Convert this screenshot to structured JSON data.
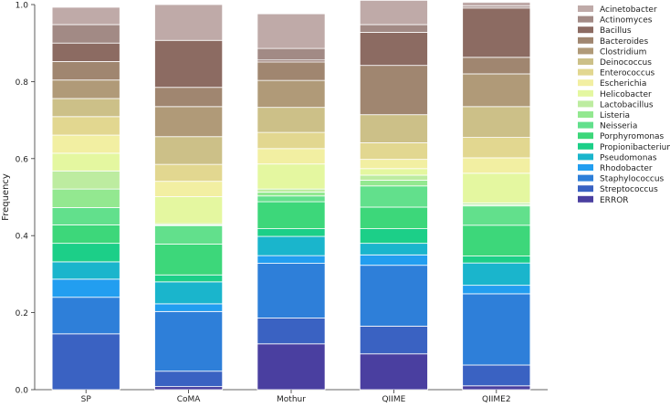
{
  "chart_data": {
    "type": "bar",
    "stacked": true,
    "title": "",
    "xlabel": "",
    "ylabel": "Frequency",
    "ylim": [
      0,
      1
    ],
    "yticks": [
      0.0,
      0.2,
      0.4,
      0.6,
      0.8,
      1.0
    ],
    "ytick_labels": [
      "0.0",
      "0.2",
      "0.4",
      "0.6",
      "0.8",
      "1.0"
    ],
    "grid": false,
    "legend_position": "right",
    "categories": [
      "SP",
      "CoMA",
      "Mothur",
      "QIIME",
      "QIIME2"
    ],
    "series": [
      {
        "name": "ERROR",
        "color": "#4a3fa0",
        "values": [
          0.0,
          0.008,
          0.119,
          0.093,
          0.01
        ]
      },
      {
        "name": "Streptococcus",
        "color": "#3a62c2",
        "values": [
          0.145,
          0.04,
          0.067,
          0.072,
          0.054
        ]
      },
      {
        "name": "Staphylococcus",
        "color": "#2e7fd9",
        "values": [
          0.095,
          0.155,
          0.142,
          0.158,
          0.185
        ]
      },
      {
        "name": "Rhodobacter",
        "color": "#229ef0",
        "values": [
          0.047,
          0.02,
          0.02,
          0.027,
          0.022
        ]
      },
      {
        "name": "Pseudomonas",
        "color": "#1ab5cc",
        "values": [
          0.045,
          0.057,
          0.05,
          0.03,
          0.058
        ]
      },
      {
        "name": "Propionibacterium",
        "color": "#1ccf88",
        "values": [
          0.048,
          0.018,
          0.02,
          0.038,
          0.018
        ]
      },
      {
        "name": "Porphyromonas",
        "color": "#3dd77a",
        "values": [
          0.048,
          0.08,
          0.07,
          0.056,
          0.08
        ]
      },
      {
        "name": "Neisseria",
        "color": "#62e08c",
        "values": [
          0.045,
          0.048,
          0.015,
          0.055,
          0.05
        ]
      },
      {
        "name": "Listeria",
        "color": "#93e890",
        "values": [
          0.048,
          0.002,
          0.01,
          0.015,
          0.003
        ]
      },
      {
        "name": "Lactobacillus",
        "color": "#bdeca0",
        "values": [
          0.047,
          0.003,
          0.008,
          0.013,
          0.005
        ]
      },
      {
        "name": "Helicobacter",
        "color": "#e4f7a0",
        "values": [
          0.046,
          0.07,
          0.065,
          0.017,
          0.077
        ]
      },
      {
        "name": "Escherichia",
        "color": "#f2efa2",
        "values": [
          0.047,
          0.04,
          0.04,
          0.024,
          0.04
        ]
      },
      {
        "name": "Enterococcus",
        "color": "#e2d790",
        "values": [
          0.048,
          0.044,
          0.042,
          0.043,
          0.053
        ]
      },
      {
        "name": "Deinococcus",
        "color": "#ccc088",
        "values": [
          0.047,
          0.072,
          0.065,
          0.073,
          0.08
        ]
      },
      {
        "name": "Clostridium",
        "color": "#b09a78",
        "values": [
          0.048,
          0.078,
          0.07,
          0.0,
          0.085
        ]
      },
      {
        "name": "Bacteroides",
        "color": "#a08670",
        "values": [
          0.048,
          0.05,
          0.048,
          0.128,
          0.043
        ]
      },
      {
        "name": "Bacillus",
        "color": "#8c6b62",
        "values": [
          0.048,
          0.122,
          0.005,
          0.086,
          0.128
        ]
      },
      {
        "name": "Actinomyces",
        "color": "#a28a85",
        "values": [
          0.048,
          0.0,
          0.03,
          0.02,
          0.005
        ]
      },
      {
        "name": "Acinetobacter",
        "color": "#bfaaa8",
        "values": [
          0.045,
          0.093,
          0.09,
          0.063,
          0.01
        ]
      }
    ]
  }
}
